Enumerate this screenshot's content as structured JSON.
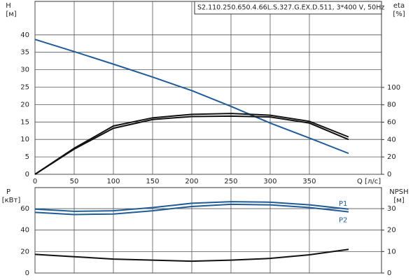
{
  "chart_data": [
    {
      "type": "line",
      "title": "S2.110.250.650.4.66L.S.327.G.EX.D.511, 3*400 V, 50Hz",
      "y_label": "H",
      "y_unit": "[м]",
      "y2_label": "eta",
      "y2_unit": "[%]",
      "x_label": "Q [л/с]",
      "x": [
        0,
        50,
        100,
        150,
        200,
        250,
        300,
        350,
        400
      ],
      "xlim": [
        0,
        442
      ],
      "xticks": [
        0,
        50,
        100,
        150,
        200,
        250,
        300,
        350
      ],
      "ylim": [
        0,
        49.6
      ],
      "yticks": [
        0,
        5,
        10,
        15,
        20,
        25,
        30,
        35,
        40
      ],
      "y2lim": [
        0,
        199
      ],
      "y2ticks": [
        0,
        20,
        40,
        60,
        80,
        100
      ],
      "grid": true,
      "series": [
        {
          "color": "#1f5c99",
          "values": [
            38.7,
            35.2,
            31.6,
            27.9,
            24,
            19.5,
            14.7,
            10.4,
            6
          ]
        },
        {
          "color": "#111111",
          "axis": "y2",
          "values": [
            0,
            30,
            55.6,
            65,
            69,
            70,
            68,
            61,
            43
          ]
        },
        {
          "color": "#111111",
          "axis": "y2",
          "values": [
            0,
            29,
            53,
            63,
            66.5,
            67,
            66,
            59,
            40
          ]
        }
      ]
    },
    {
      "type": "line",
      "y_label": "P",
      "y_unit": "[кВт]",
      "y2_label": "NPSH",
      "y2_unit": "[м]",
      "x": [
        0,
        50,
        100,
        150,
        200,
        250,
        300,
        350,
        400
      ],
      "xlim": [
        0,
        442
      ],
      "ylim": [
        0,
        79.6
      ],
      "yticks": [
        0,
        20,
        40,
        60
      ],
      "y2lim": [
        0,
        39.8
      ],
      "y2ticks": [
        0,
        10,
        20,
        30
      ],
      "grid": true,
      "series": [
        {
          "name": "P1",
          "color": "#1f5c99",
          "values": [
            59.5,
            57.5,
            58,
            61,
            65,
            66.5,
            66,
            63.5,
            59.5
          ]
        },
        {
          "name": "P2",
          "color": "#1f5c99",
          "values": [
            56.5,
            54.5,
            55,
            58,
            62,
            64,
            63.5,
            61,
            57
          ]
        },
        {
          "color": "#111111",
          "axis": "y2",
          "values": [
            8.7,
            7.6,
            6.5,
            6,
            5.5,
            6,
            6.8,
            8.5,
            11
          ]
        }
      ]
    }
  ]
}
